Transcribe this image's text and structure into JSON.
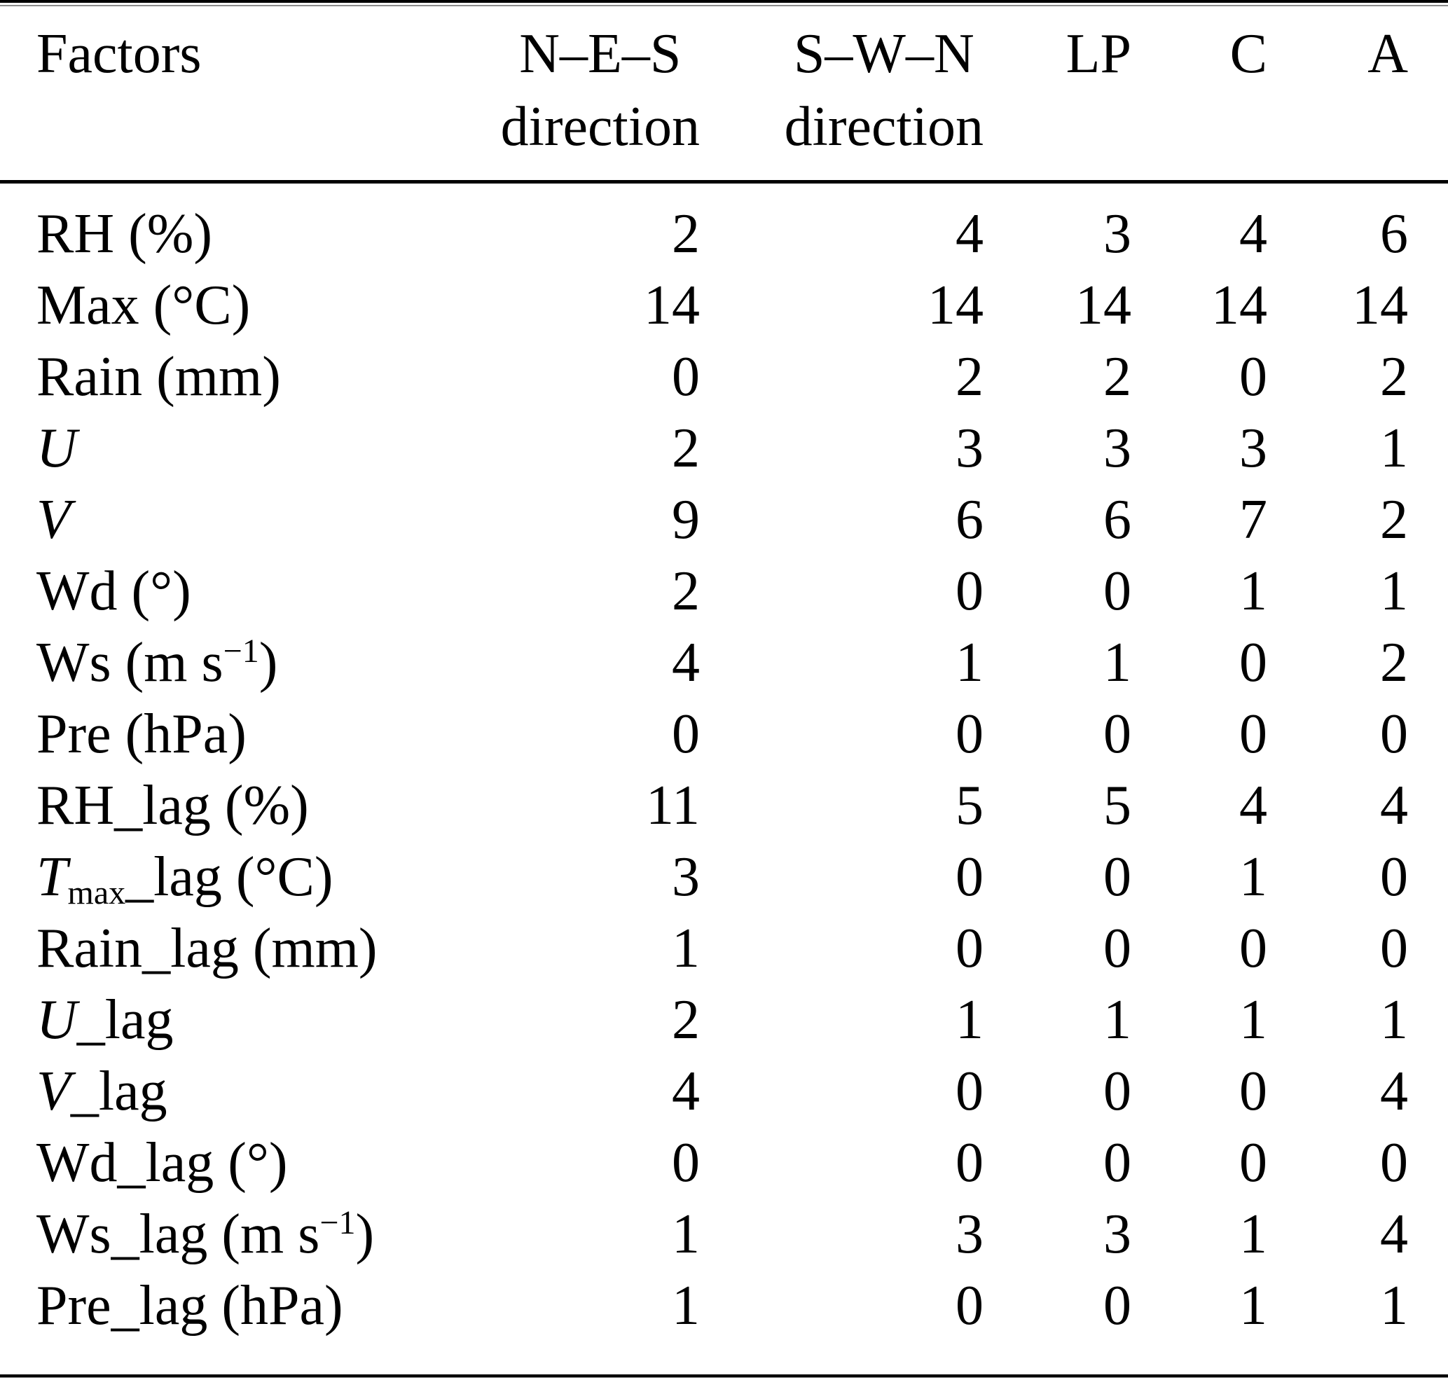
{
  "table": {
    "header": {
      "factors": "Factors",
      "columns": [
        {
          "line1": "N–E–S",
          "line2": "direction"
        },
        {
          "line1": "S–W–N",
          "line2": "direction"
        },
        {
          "line1": "LP",
          "line2": ""
        },
        {
          "line1": "C",
          "line2": ""
        },
        {
          "line1": "A",
          "line2": ""
        }
      ]
    },
    "rows": [
      {
        "label": [
          {
            "t": "RH (%)"
          }
        ],
        "values": [
          2,
          4,
          3,
          4,
          6
        ]
      },
      {
        "label": [
          {
            "t": "Max (°C)"
          }
        ],
        "values": [
          14,
          14,
          14,
          14,
          14
        ]
      },
      {
        "label": [
          {
            "t": "Rain (mm)"
          }
        ],
        "values": [
          0,
          2,
          2,
          0,
          2
        ]
      },
      {
        "label": [
          {
            "t": "U",
            "s": "i"
          }
        ],
        "values": [
          2,
          3,
          3,
          3,
          1
        ]
      },
      {
        "label": [
          {
            "t": "V",
            "s": "i"
          }
        ],
        "values": [
          9,
          6,
          6,
          7,
          2
        ]
      },
      {
        "label": [
          {
            "t": "Wd (°)"
          }
        ],
        "values": [
          2,
          0,
          0,
          1,
          1
        ]
      },
      {
        "label": [
          {
            "t": "Ws (m s"
          },
          {
            "t": "−1",
            "s": "sup"
          },
          {
            "t": ")"
          }
        ],
        "values": [
          4,
          1,
          1,
          0,
          2
        ]
      },
      {
        "label": [
          {
            "t": "Pre (hPa)"
          }
        ],
        "values": [
          0,
          0,
          0,
          0,
          0
        ]
      },
      {
        "label": [
          {
            "t": "RH_lag (%)"
          }
        ],
        "values": [
          11,
          5,
          5,
          4,
          4
        ]
      },
      {
        "label": [
          {
            "t": "T",
            "s": "i"
          },
          {
            "t": "max",
            "s": "sub"
          },
          {
            "t": "_lag (°C)"
          }
        ],
        "values": [
          3,
          0,
          0,
          1,
          0
        ]
      },
      {
        "label": [
          {
            "t": "Rain_lag (mm)"
          }
        ],
        "values": [
          1,
          0,
          0,
          0,
          0
        ]
      },
      {
        "label": [
          {
            "t": "U",
            "s": "i"
          },
          {
            "t": "_lag"
          }
        ],
        "values": [
          2,
          1,
          1,
          1,
          1
        ]
      },
      {
        "label": [
          {
            "t": "V",
            "s": "i"
          },
          {
            "t": "_lag"
          }
        ],
        "values": [
          4,
          0,
          0,
          0,
          4
        ]
      },
      {
        "label": [
          {
            "t": "Wd_lag (°)"
          }
        ],
        "values": [
          0,
          0,
          0,
          0,
          0
        ]
      },
      {
        "label": [
          {
            "t": "Ws_lag (m s"
          },
          {
            "t": "−1",
            "s": "sup"
          },
          {
            "t": ")"
          }
        ],
        "values": [
          1,
          3,
          3,
          1,
          4
        ]
      },
      {
        "label": [
          {
            "t": "Pre_lag (hPa)"
          }
        ],
        "values": [
          1,
          0,
          0,
          1,
          1
        ]
      }
    ]
  },
  "colors": {
    "text": "#000000",
    "background": "#ffffff",
    "rule_black": "#000000",
    "rule_gray": "#8c8c8c"
  }
}
